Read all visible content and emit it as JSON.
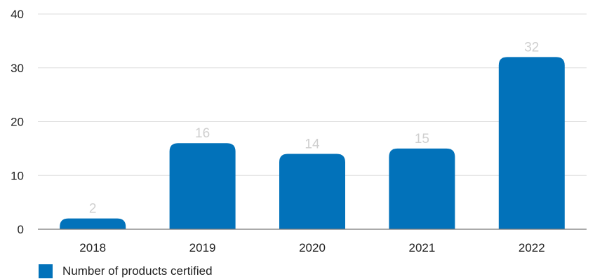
{
  "chart_data": {
    "type": "bar",
    "categories": [
      "2018",
      "2019",
      "2020",
      "2021",
      "2022"
    ],
    "series": [
      {
        "name": "Number of products certified",
        "values": [
          2,
          16,
          14,
          15,
          32
        ]
      }
    ],
    "data_labels": [
      "2",
      "16",
      "14",
      "15",
      "32"
    ],
    "yticks": [
      "0",
      "10",
      "20",
      "30",
      "40"
    ],
    "ylim": [
      0,
      40
    ],
    "title": "",
    "xlabel": "",
    "ylabel": "",
    "grid": "horizontal",
    "legend_position": "bottom-left",
    "colors": {
      "bar": "#0272BA",
      "grid": "#dddddd",
      "axis": "#777777",
      "data_label": "#cfcfcf"
    }
  }
}
